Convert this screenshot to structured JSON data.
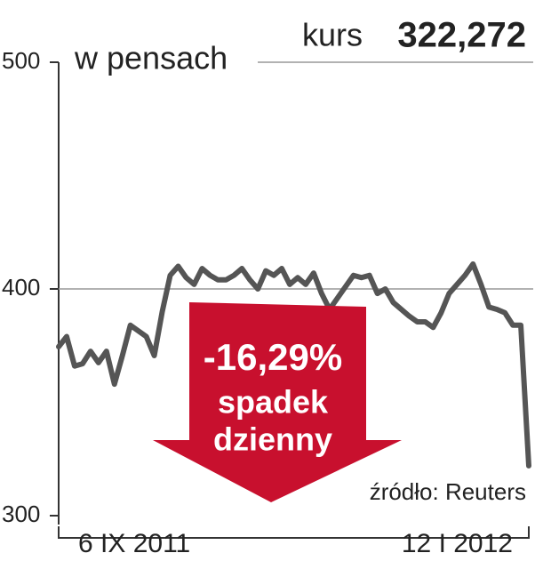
{
  "chart_data": {
    "type": "line",
    "y_label": "w pensach",
    "current_label": "kurs",
    "current_value": "322,272",
    "arrow_text": [
      "-16,29%",
      "spadek",
      "dzienny"
    ],
    "source": "źródło: Reuters",
    "categories": [
      "6 IX 2011",
      null,
      null,
      null,
      null,
      null,
      null,
      null,
      null,
      null,
      null,
      null,
      null,
      null,
      null,
      null,
      null,
      null,
      null,
      null,
      null,
      null,
      null,
      null,
      null,
      null,
      null,
      null,
      null,
      null,
      null,
      null,
      null,
      null,
      null,
      null,
      null,
      null,
      null,
      null,
      null,
      null,
      null,
      null,
      null,
      null,
      null,
      null,
      null,
      null,
      null,
      null,
      null,
      null,
      null,
      null,
      null,
      null,
      null,
      "12 I 2012"
    ],
    "values": [
      374.5,
      379,
      366,
      367,
      372.5,
      367.5,
      372.5,
      358,
      370.6,
      384,
      381.5,
      379,
      370.6,
      390,
      406,
      410,
      405,
      402,
      409,
      406,
      404,
      404,
      406,
      409,
      404,
      400,
      408,
      406,
      409,
      402,
      405,
      402,
      407,
      398,
      391,
      396,
      401,
      406,
      405,
      406,
      398,
      400,
      394,
      391,
      388,
      385.5,
      385.5,
      383,
      389.5,
      398,
      402,
      406,
      411,
      402,
      392,
      391,
      389.5,
      384,
      384,
      322
    ],
    "color": "#555555",
    "arrow_color": "#c8102e",
    "ylim": [
      300,
      500
    ],
    "yticks": [
      300,
      400,
      500
    ],
    "grid": true
  }
}
